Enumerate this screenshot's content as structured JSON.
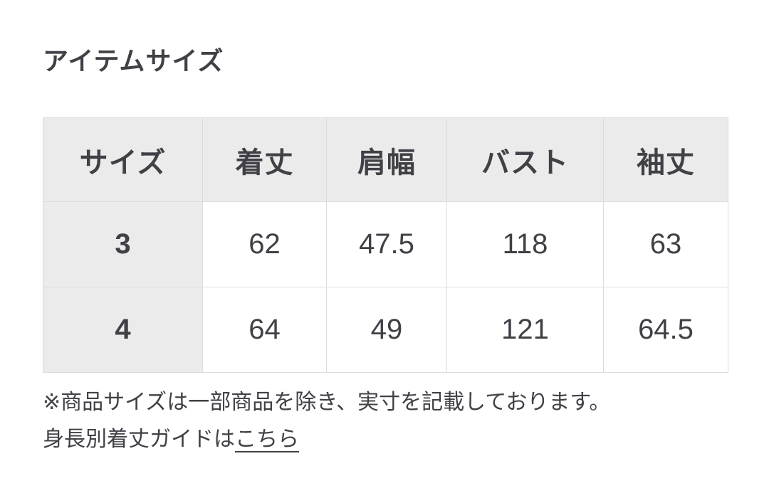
{
  "page": {
    "title": "アイテムサイズ"
  },
  "size_table": {
    "headers": [
      "サイズ",
      "着丈",
      "肩幅",
      "バスト",
      "袖丈"
    ],
    "rows": [
      {
        "size": "3",
        "values": [
          "62",
          "47.5",
          "118",
          "63"
        ]
      },
      {
        "size": "4",
        "values": [
          "64",
          "49",
          "121",
          "64.5"
        ]
      }
    ]
  },
  "notes": {
    "disclaimer": "※商品サイズは一部商品を除き、実寸を記載しております。",
    "guide_prefix": "身長別着丈ガイドは",
    "guide_link_label": "こちら"
  },
  "colors": {
    "text": "#404046",
    "table_header_bg": "#ebebeb",
    "table_border": "#dcdcdc",
    "page_bg": "#ffffff"
  }
}
